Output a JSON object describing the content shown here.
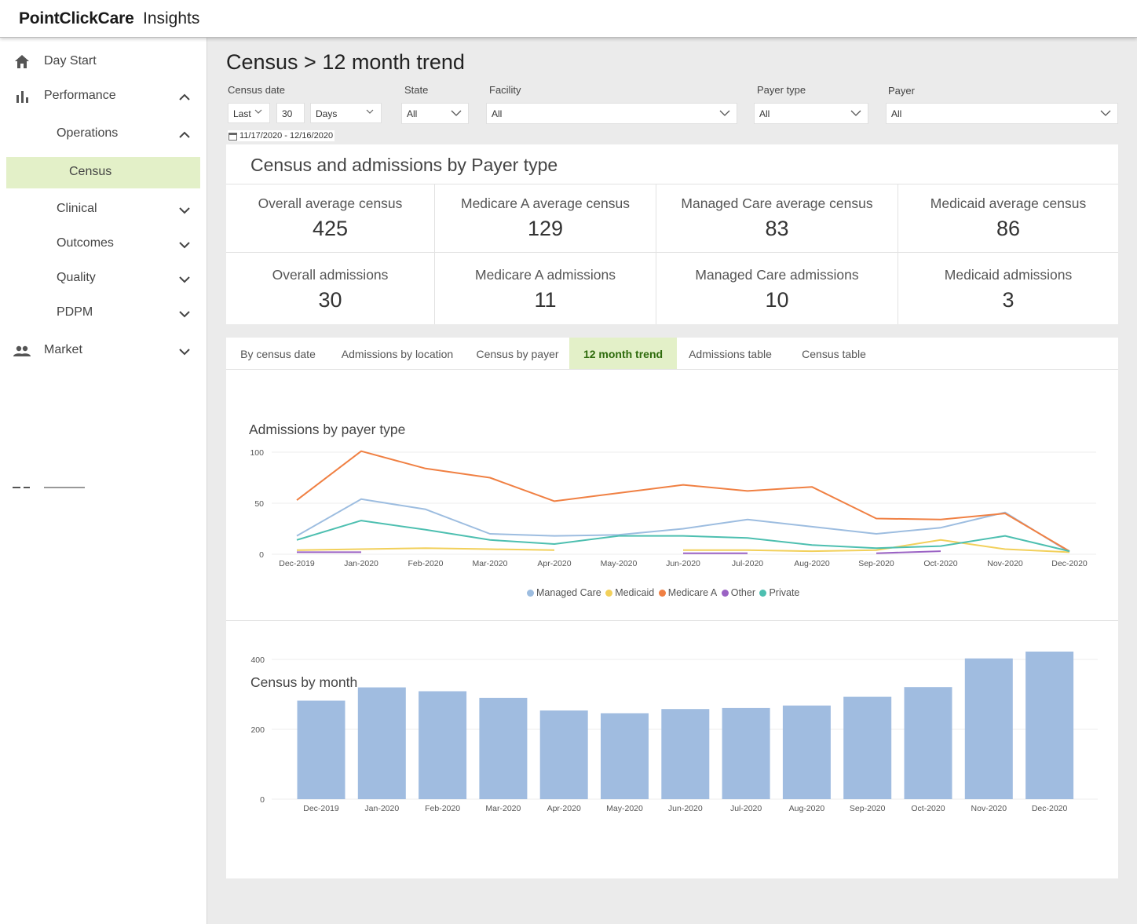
{
  "app": {
    "brand": "PointClickCare",
    "product": "Insights"
  },
  "sidebar": {
    "items": [
      {
        "label": "Day Start"
      },
      {
        "label": "Performance"
      },
      {
        "label": "Operations"
      },
      {
        "label": "Census"
      },
      {
        "label": "Clinical"
      },
      {
        "label": "Outcomes"
      },
      {
        "label": "Quality"
      },
      {
        "label": "PDPM"
      },
      {
        "label": "Market"
      }
    ]
  },
  "page": {
    "title": "Census > 12 month trend"
  },
  "filters": {
    "census_date_label": "Census date",
    "period_value": "Last",
    "period_count": "30",
    "period_unit": "Days",
    "state_label": "State",
    "state_value": "All",
    "facility_label": "Facility",
    "facility_value": "All",
    "payer_type_label": "Payer type",
    "payer_type_value": "All",
    "payer_label": "Payer",
    "payer_value": "All",
    "date_range": "11/17/2020 - 12/16/2020"
  },
  "kpis": {
    "title": "Census and admissions by Payer type",
    "row1": [
      {
        "label": "Overall average census",
        "value": "425"
      },
      {
        "label": "Medicare A average census",
        "value": "129"
      },
      {
        "label": "Managed Care average census",
        "value": "83"
      },
      {
        "label": "Medicaid average census",
        "value": "86"
      }
    ],
    "row2": [
      {
        "label": "Overall admissions",
        "value": "30"
      },
      {
        "label": "Medicare A admissions",
        "value": "11"
      },
      {
        "label": "Managed Care admissions",
        "value": "10"
      },
      {
        "label": "Medicaid admissions",
        "value": "3"
      }
    ]
  },
  "tabs": [
    {
      "label": "By census date"
    },
    {
      "label": "Admissions by location"
    },
    {
      "label": "Census by payer"
    },
    {
      "label": "12 month trend",
      "active": true
    },
    {
      "label": "Admissions table"
    },
    {
      "label": "Census table"
    }
  ],
  "colors": {
    "managed_care": "#9dbde0",
    "medicaid": "#f2d05b",
    "medicare_a": "#f08043",
    "other": "#9b63c4",
    "private": "#4dbfb0",
    "bar": "#a0bce0",
    "active_tab_bg": "#e3f0c8",
    "active_tab_text": "#2e6b0c"
  },
  "chart_data": [
    {
      "type": "line",
      "title": "Admissions by payer type",
      "x": [
        "Dec-2019",
        "Jan-2020",
        "Feb-2020",
        "Mar-2020",
        "Apr-2020",
        "May-2020",
        "Jun-2020",
        "Jul-2020",
        "Aug-2020",
        "Sep-2020",
        "Oct-2020",
        "Nov-2020",
        "Dec-2020"
      ],
      "yticks": [
        0,
        50,
        100
      ],
      "ylim": [
        0,
        100
      ],
      "grid": true,
      "legend_position": "bottom",
      "series": [
        {
          "name": "Managed Care",
          "values": [
            18,
            54,
            44,
            20,
            18,
            19,
            25,
            34,
            27,
            20,
            26,
            41,
            2
          ]
        },
        {
          "name": "Medicaid",
          "values": [
            4,
            5,
            6,
            5,
            4,
            null,
            4,
            4,
            3,
            4,
            14,
            5,
            2
          ]
        },
        {
          "name": "Medicare A",
          "values": [
            53,
            101,
            84,
            75,
            52,
            60,
            68,
            62,
            66,
            35,
            34,
            40,
            3
          ]
        },
        {
          "name": "Other",
          "values": [
            2,
            2,
            null,
            null,
            null,
            null,
            1,
            1,
            null,
            1,
            3,
            null,
            null
          ]
        },
        {
          "name": "Private",
          "values": [
            14,
            33,
            24,
            14,
            10,
            18,
            18,
            16,
            9,
            6,
            8,
            18,
            3
          ]
        }
      ]
    },
    {
      "type": "bar",
      "title": "Census by month",
      "categories": [
        "Dec-2019",
        "Jan-2020",
        "Feb-2020",
        "Mar-2020",
        "Apr-2020",
        "May-2020",
        "Jun-2020",
        "Jul-2020",
        "Aug-2020",
        "Sep-2020",
        "Oct-2020",
        "Nov-2020",
        "Dec-2020"
      ],
      "values": [
        282,
        320,
        309,
        290,
        254,
        246,
        258,
        261,
        268,
        293,
        321,
        403,
        429
      ],
      "yticks": [
        0,
        200,
        400
      ],
      "ylim": [
        0,
        450
      ],
      "grid": true
    }
  ]
}
